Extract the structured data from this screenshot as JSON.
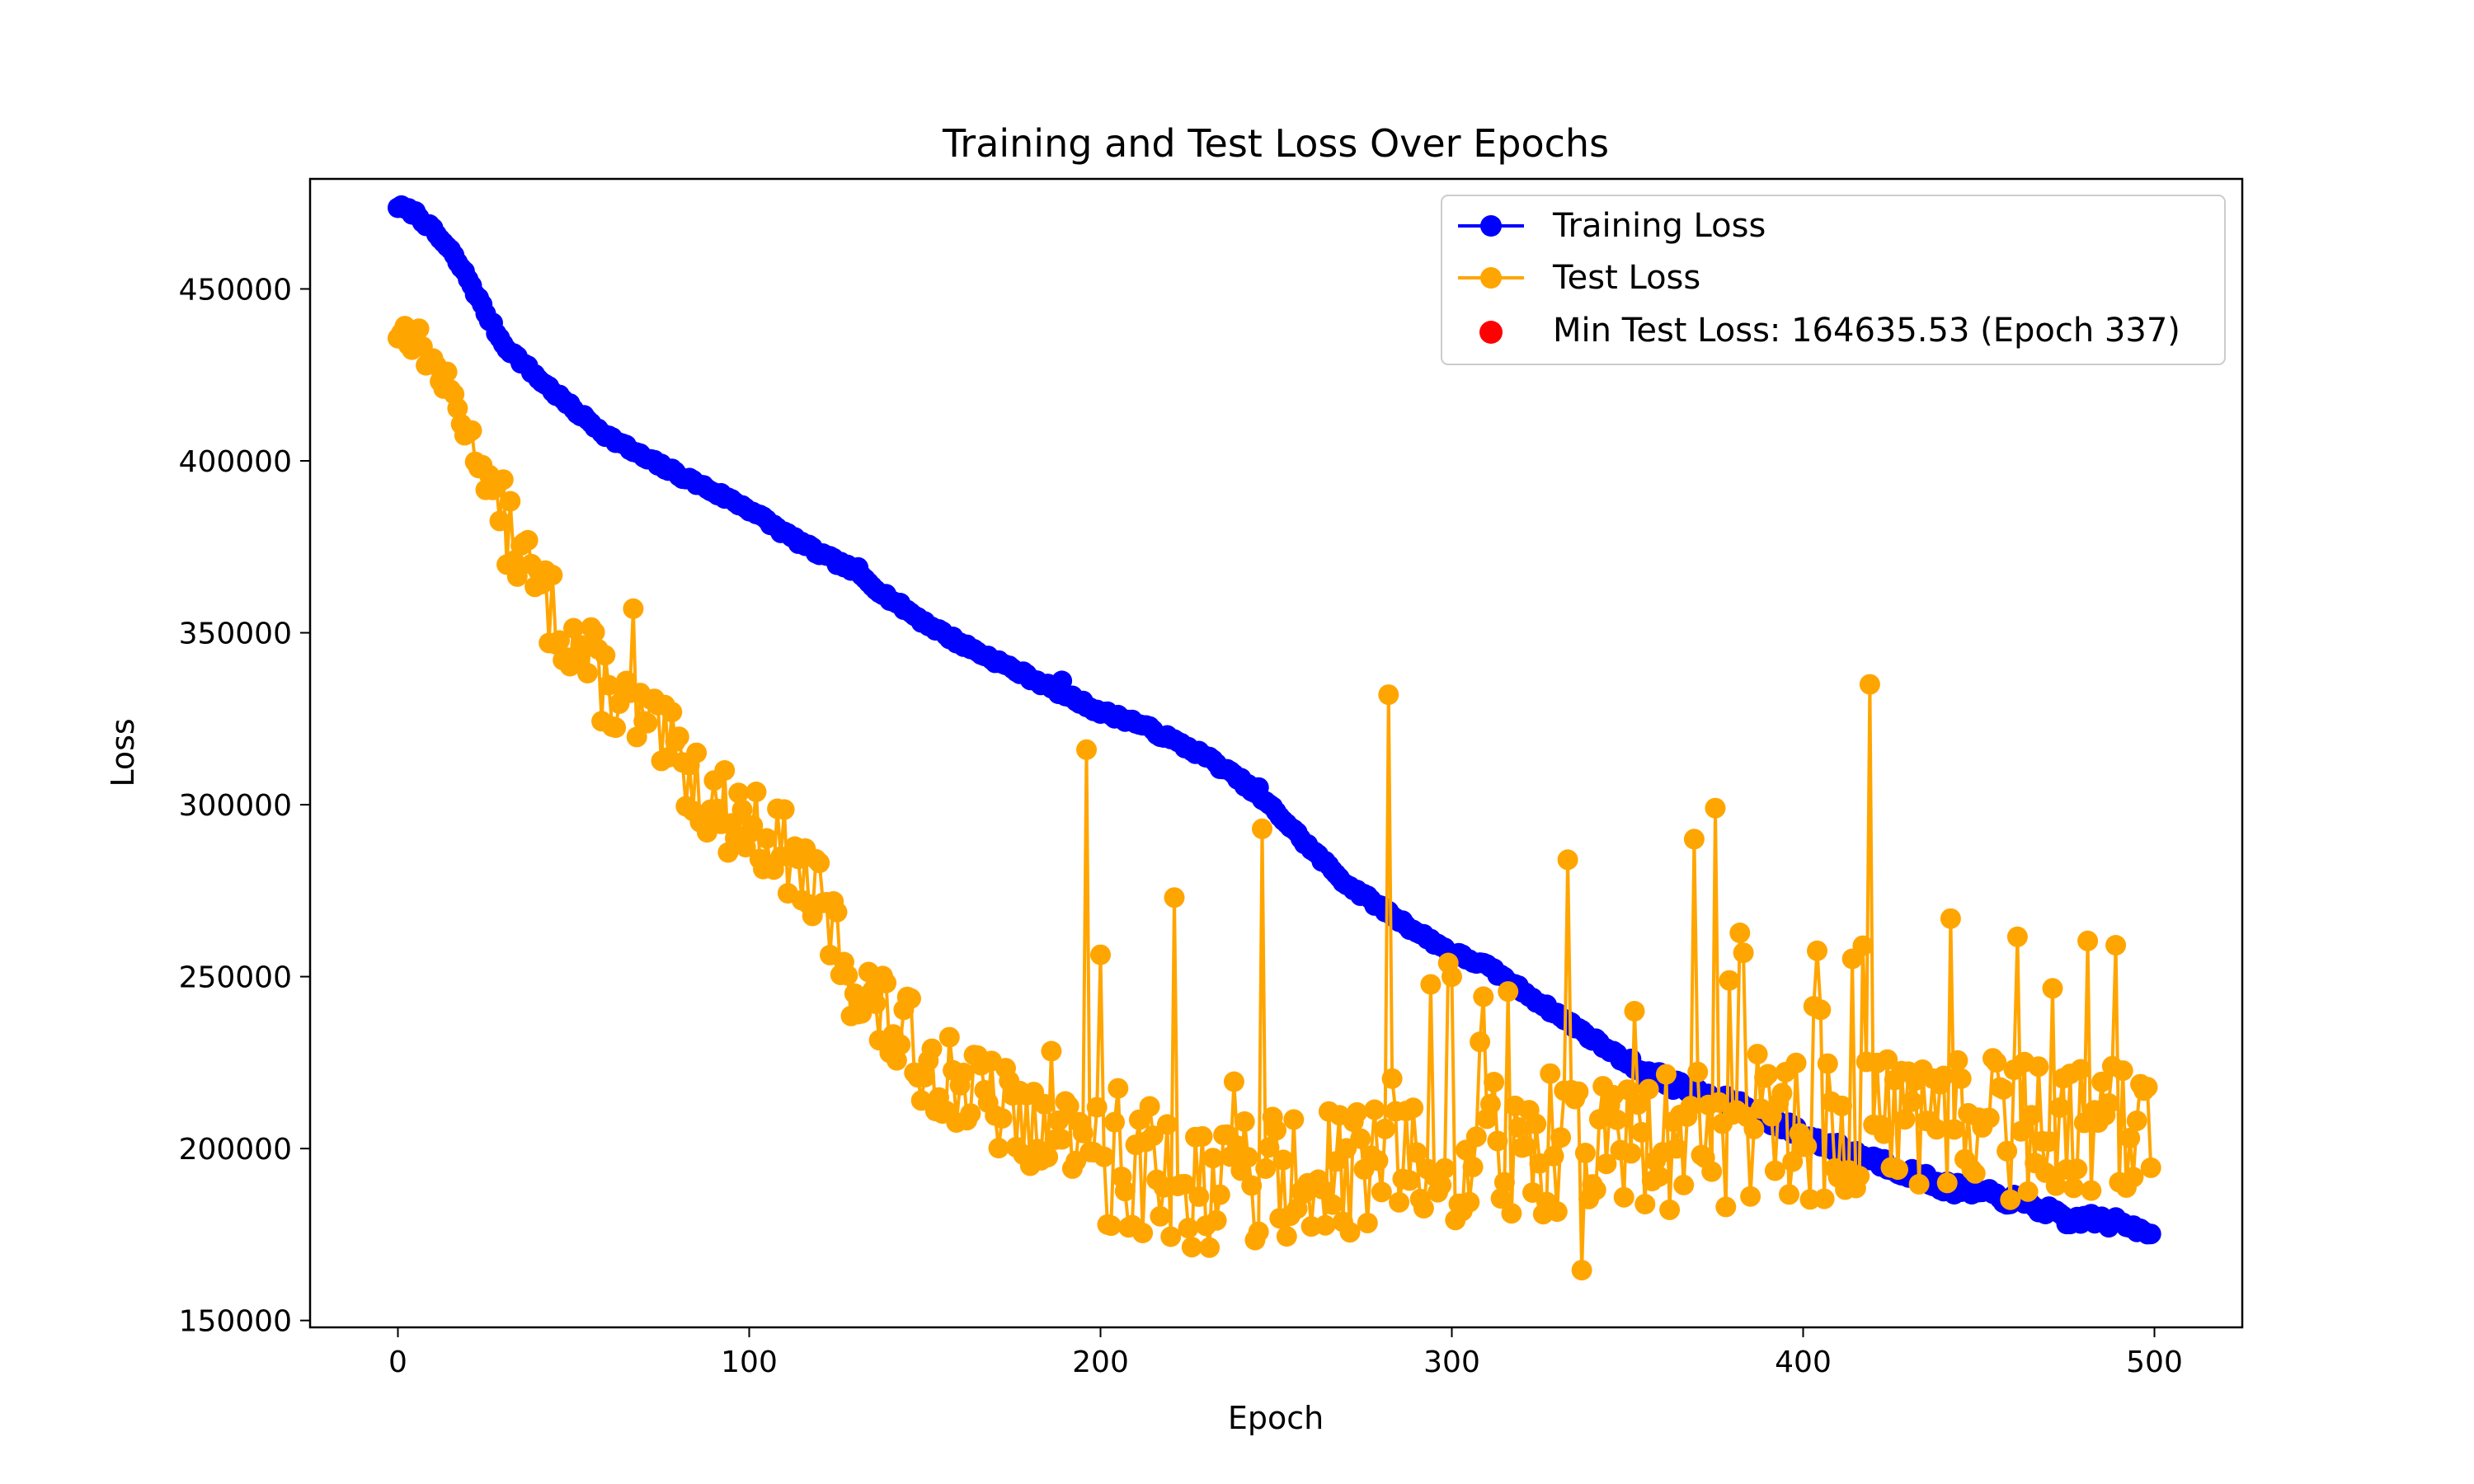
{
  "chart_data": {
    "type": "line",
    "title": "Training and Test Loss Over Epochs",
    "xlabel": "Epoch",
    "ylabel": "Loss",
    "xlim": [
      -25,
      525
    ],
    "ylim": [
      148000,
      482000
    ],
    "xticks": [
      0,
      100,
      200,
      300,
      400,
      500
    ],
    "yticks": [
      150000,
      200000,
      250000,
      300000,
      350000,
      400000,
      450000
    ],
    "grid": false,
    "legend_position": "top-right",
    "series": [
      {
        "name": "Training Loss",
        "color": "#0000ff",
        "marker": "circle",
        "anchors": [
          [
            0,
            474000
          ],
          [
            5,
            472000
          ],
          [
            10,
            467000
          ],
          [
            15,
            461000
          ],
          [
            20,
            453000
          ],
          [
            25,
            443000
          ],
          [
            30,
            434000
          ],
          [
            40,
            424000
          ],
          [
            50,
            415000
          ],
          [
            60,
            407000
          ],
          [
            70,
            401000
          ],
          [
            80,
            396000
          ],
          [
            90,
            391000
          ],
          [
            100,
            386000
          ],
          [
            110,
            379000
          ],
          [
            120,
            373000
          ],
          [
            130,
            368000
          ],
          [
            140,
            360000
          ],
          [
            150,
            353000
          ],
          [
            160,
            347000
          ],
          [
            170,
            342000
          ],
          [
            180,
            337000
          ],
          [
            190,
            332000
          ],
          [
            200,
            327000
          ],
          [
            210,
            324000
          ],
          [
            220,
            319000
          ],
          [
            230,
            314000
          ],
          [
            240,
            307000
          ],
          [
            250,
            298000
          ],
          [
            260,
            287000
          ],
          [
            270,
            277000
          ],
          [
            280,
            270000
          ],
          [
            290,
            263000
          ],
          [
            300,
            257000
          ],
          [
            310,
            253000
          ],
          [
            320,
            246000
          ],
          [
            330,
            239000
          ],
          [
            340,
            232000
          ],
          [
            350,
            225000
          ],
          [
            360,
            220000
          ],
          [
            370,
            216000
          ],
          [
            380,
            213000
          ],
          [
            390,
            209000
          ],
          [
            400,
            204000
          ],
          [
            410,
            200000
          ],
          [
            420,
            197000
          ],
          [
            430,
            193000
          ],
          [
            440,
            189000
          ],
          [
            450,
            187000
          ],
          [
            460,
            185000
          ],
          [
            470,
            182000
          ],
          [
            475,
            178000
          ],
          [
            480,
            180000
          ],
          [
            490,
            178000
          ],
          [
            500,
            176000
          ]
        ],
        "bumps": [
          [
            131,
            369000
          ],
          [
            189,
            336000
          ],
          [
            245,
            305000
          ]
        ]
      },
      {
        "name": "Test Loss",
        "color": "#ffa500",
        "marker": "circle",
        "anchors": [
          [
            0,
            438000
          ],
          [
            5,
            436000
          ],
          [
            10,
            428000
          ],
          [
            15,
            420000
          ],
          [
            20,
            408000
          ],
          [
            25,
            396000
          ],
          [
            30,
            383000
          ],
          [
            40,
            362000
          ],
          [
            50,
            348000
          ],
          [
            60,
            333000
          ],
          [
            70,
            323000
          ],
          [
            80,
            313000
          ],
          [
            90,
            300000
          ],
          [
            100,
            295000
          ],
          [
            110,
            287000
          ],
          [
            120,
            272000
          ],
          [
            130,
            248000
          ],
          [
            140,
            236000
          ],
          [
            150,
            226000
          ],
          [
            160,
            219000
          ],
          [
            170,
            212000
          ],
          [
            180,
            207000
          ],
          [
            190,
            203000
          ],
          [
            200,
            199000
          ],
          [
            220,
            193000
          ],
          [
            240,
            190000
          ],
          [
            260,
            190000
          ],
          [
            280,
            192000
          ],
          [
            300,
            196000
          ],
          [
            320,
            200000
          ],
          [
            340,
            202000
          ],
          [
            360,
            203000
          ],
          [
            380,
            204000
          ],
          [
            400,
            205000
          ],
          [
            420,
            206000
          ],
          [
            440,
            205000
          ],
          [
            460,
            206000
          ],
          [
            480,
            206000
          ],
          [
            500,
            206000
          ]
        ],
        "spikes": [
          [
            67,
            357000
          ],
          [
            196,
            316000
          ],
          [
            221,
            273000
          ],
          [
            246,
            293000
          ],
          [
            282,
            332000
          ],
          [
            300,
            250000
          ],
          [
            333,
            284000
          ],
          [
            369,
            290000
          ],
          [
            375,
            299000
          ],
          [
            419,
            335000
          ],
          [
            417,
            259000
          ],
          [
            337,
            164636
          ]
        ]
      }
    ],
    "annotations": [
      {
        "label": "Min Test Loss: 164635.53 (Epoch 337)",
        "x": 337,
        "y": 164635.53,
        "color": "#ff0000",
        "marker": "circle"
      }
    ]
  }
}
